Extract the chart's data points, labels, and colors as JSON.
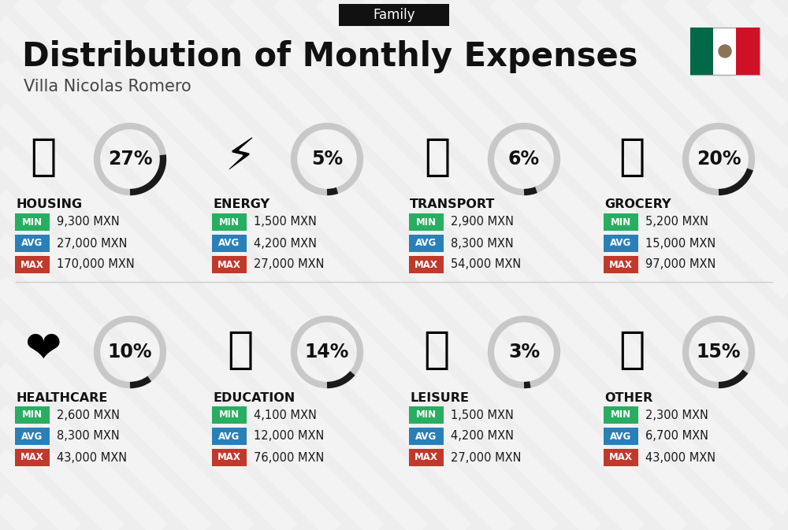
{
  "title": "Distribution of Monthly Expenses",
  "subtitle": "Villa Nicolas Romero",
  "tag": "Family",
  "background_color": "#eeeeee",
  "categories": [
    {
      "name": "HOUSING",
      "pct": 27,
      "icon": "🏢",
      "min": "9,300 MXN",
      "avg": "27,000 MXN",
      "max": "170,000 MXN",
      "col": 0,
      "row": 0
    },
    {
      "name": "ENERGY",
      "pct": 5,
      "icon": "⚡",
      "min": "1,500 MXN",
      "avg": "4,200 MXN",
      "max": "27,000 MXN",
      "col": 1,
      "row": 0
    },
    {
      "name": "TRANSPORT",
      "pct": 6,
      "icon": "🚌",
      "min": "2,900 MXN",
      "avg": "8,300 MXN",
      "max": "54,000 MXN",
      "col": 2,
      "row": 0
    },
    {
      "name": "GROCERY",
      "pct": 20,
      "icon": "🛒",
      "min": "5,200 MXN",
      "avg": "15,000 MXN",
      "max": "97,000 MXN",
      "col": 3,
      "row": 0
    },
    {
      "name": "HEALTHCARE",
      "pct": 10,
      "icon": "❤️",
      "min": "2,600 MXN",
      "avg": "8,300 MXN",
      "max": "43,000 MXN",
      "col": 0,
      "row": 1
    },
    {
      "name": "EDUCATION",
      "pct": 14,
      "icon": "🎓",
      "min": "4,100 MXN",
      "avg": "12,000 MXN",
      "max": "76,000 MXN",
      "col": 1,
      "row": 1
    },
    {
      "name": "LEISURE",
      "pct": 3,
      "icon": "🛍️",
      "min": "1,500 MXN",
      "avg": "4,200 MXN",
      "max": "27,000 MXN",
      "col": 2,
      "row": 1
    },
    {
      "name": "OTHER",
      "pct": 15,
      "icon": "💰",
      "min": "2,300 MXN",
      "avg": "6,700 MXN",
      "max": "43,000 MXN",
      "col": 3,
      "row": 1
    }
  ],
  "color_min": "#27ae60",
  "color_avg": "#2980b9",
  "color_max": "#c0392b",
  "color_donut_fill": "#1a1a1a",
  "color_donut_bg": "#c8c8c8",
  "title_fontsize": 30,
  "subtitle_fontsize": 15,
  "tag_fontsize": 12,
  "cat_fontsize": 11.5,
  "val_fontsize": 10.5,
  "pct_fontsize": 17
}
